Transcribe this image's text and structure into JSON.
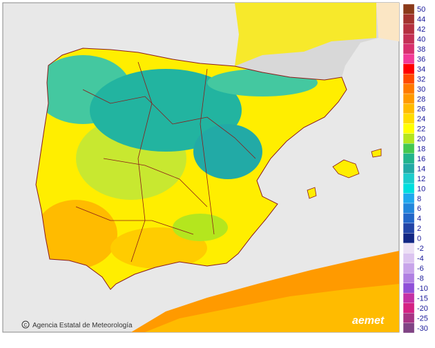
{
  "legend": {
    "items": [
      {
        "label": 50,
        "color": "#8b3a1a"
      },
      {
        "label": 44,
        "color": "#a3322e"
      },
      {
        "label": 42,
        "color": "#b53040"
      },
      {
        "label": 40,
        "color": "#c43055"
      },
      {
        "label": 38,
        "color": "#d8306e"
      },
      {
        "label": 36,
        "color": "#f23a98"
      },
      {
        "label": 34,
        "color": "#ff0000"
      },
      {
        "label": 32,
        "color": "#ff4a00"
      },
      {
        "label": 30,
        "color": "#ff7a00"
      },
      {
        "label": 28,
        "color": "#ff9a00"
      },
      {
        "label": 26,
        "color": "#ffbb00"
      },
      {
        "label": 24,
        "color": "#ffdc00"
      },
      {
        "label": 22,
        "color": "#ffff00"
      },
      {
        "label": 20,
        "color": "#b4e61e"
      },
      {
        "label": 18,
        "color": "#44c850"
      },
      {
        "label": 16,
        "color": "#22b48c"
      },
      {
        "label": 14,
        "color": "#22aaa6"
      },
      {
        "label": 12,
        "color": "#1ccccc"
      },
      {
        "label": 10,
        "color": "#00dede"
      },
      {
        "label": 8,
        "color": "#1fa8ee"
      },
      {
        "label": 6,
        "color": "#2286dc"
      },
      {
        "label": 4,
        "color": "#2266c8"
      },
      {
        "label": 2,
        "color": "#2244a6"
      },
      {
        "label": 0,
        "color": "#122684"
      }
    ],
    "negative_items": [
      {
        "label": -2,
        "color": "#ece0f4"
      },
      {
        "label": -4,
        "color": "#dcc4f0"
      },
      {
        "label": -6,
        "color": "#c8a4ea"
      },
      {
        "label": -8,
        "color": "#b080e2"
      },
      {
        "label": -10,
        "color": "#9050d8"
      },
      {
        "label": -15,
        "color": "#c430a4"
      },
      {
        "label": -20,
        "color": "#d42284"
      },
      {
        "label": -25,
        "color": "#a63484"
      },
      {
        "label": -30,
        "color": "#804484"
      }
    ]
  },
  "credits": {
    "agency": "Agencia Estatal de Meteorología",
    "logo": "aemet"
  }
}
